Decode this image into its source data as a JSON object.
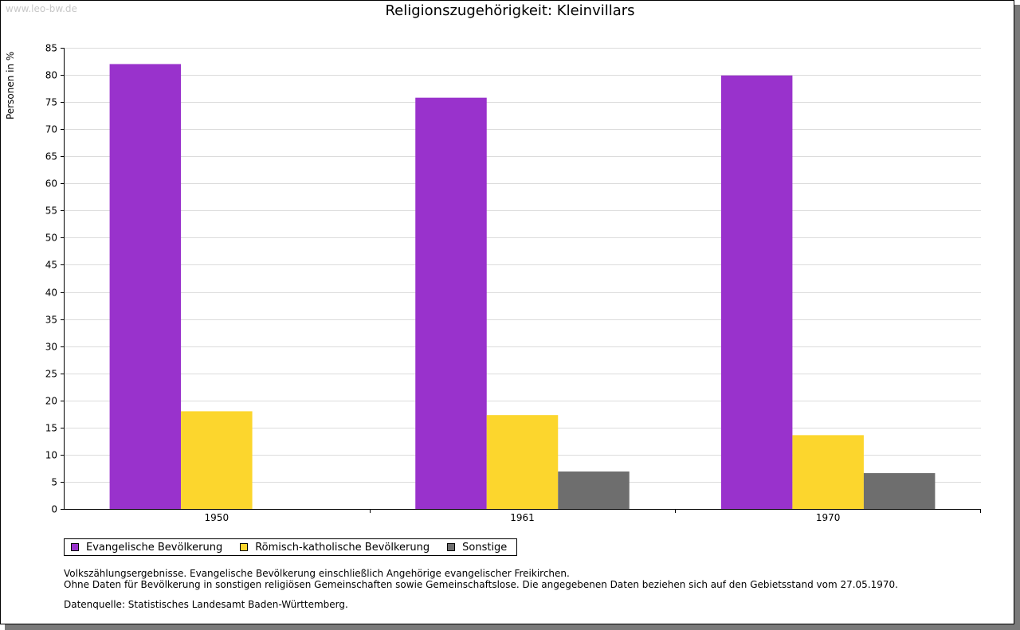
{
  "watermark": "www.leo-bw.de",
  "header": {
    "title": "Religionszugehörigkeit: Kleinvillars"
  },
  "colors": {
    "evangelisch": "#9932cc",
    "katholisch": "#fcd62d",
    "sonstige": "#6e6e6e",
    "grid": "#dcdcdc"
  },
  "chart_data": {
    "type": "bar",
    "title": "Religionszugehörigkeit: Kleinvillars",
    "xlabel": "",
    "ylabel": "Personen in %",
    "ylim": [
      0,
      85
    ],
    "yticks": [
      "0",
      "5",
      "10",
      "15",
      "20",
      "25",
      "30",
      "35",
      "40",
      "45",
      "50",
      "55",
      "60",
      "65",
      "70",
      "75",
      "80",
      "85"
    ],
    "categories": [
      "1950",
      "1961",
      "1970"
    ],
    "series": [
      {
        "name": "Evangelische Bevölkerung",
        "color": "#9932cc",
        "values": [
          82.0,
          75.8,
          79.9
        ]
      },
      {
        "name": "Römisch-katholische Bevölkerung",
        "color": "#fcd62d",
        "values": [
          18.0,
          17.3,
          13.6
        ]
      },
      {
        "name": "Sonstige",
        "color": "#6e6e6e",
        "values": [
          null,
          6.9,
          6.6
        ]
      }
    ],
    "grid": true,
    "legend_position": "bottom-left"
  },
  "notes": {
    "line1": "Volkszählungsergebnisse. Evangelische Bevölkerung einschließlich Angehörige evangelischer Freikirchen.",
    "line2": "Ohne Daten für Bevölkerung in sonstigen religiösen Gemeinschaften sowie Gemeinschaftslose. Die angegebenen Daten beziehen sich auf den Gebietsstand vom 27.05.1970."
  },
  "source": "Datenquelle: Statistisches Landesamt Baden-Württemberg."
}
